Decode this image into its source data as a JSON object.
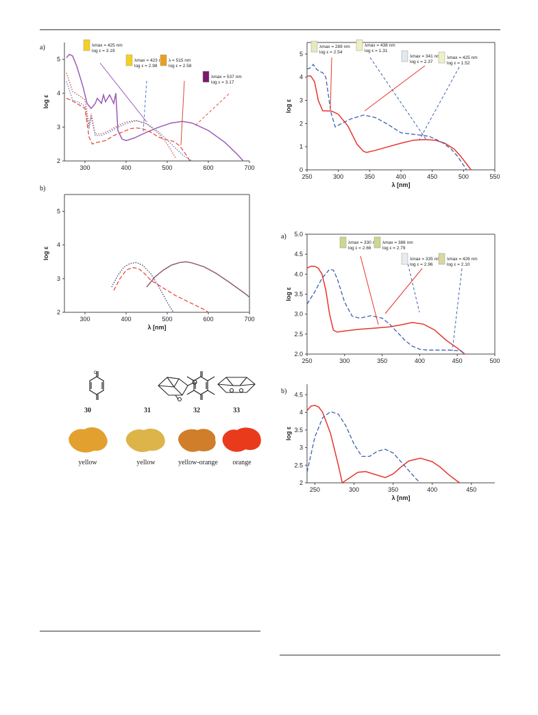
{
  "panel_labels": {
    "left_a": "a)",
    "left_b": "b)",
    "right_a": "a)",
    "right_b": "b)"
  },
  "compounds": [
    {
      "number": "30",
      "color_name": "yellow",
      "powder_color": "#e2a02e"
    },
    {
      "number": "31",
      "color_name": "yellow",
      "powder_color": "#ddb44a"
    },
    {
      "number": "32",
      "color_name": "yellow-orange",
      "powder_color": "#d07e2a"
    },
    {
      "number": "33",
      "color_name": "orange",
      "powder_color": "#ea3a1c"
    }
  ],
  "chart_data": [
    {
      "id": "left-a",
      "type": "line",
      "xlabel": "",
      "ylabel": "log ε",
      "xlim": [
        250,
        700
      ],
      "ylim": [
        2,
        5.5
      ],
      "xticks": [
        300,
        400,
        500,
        600,
        700
      ],
      "yticks": [
        2,
        3,
        4,
        5
      ],
      "grid": false,
      "series": [
        {
          "style": "solid",
          "color": "#9b59b6",
          "x": [
            255,
            262,
            270,
            280,
            295,
            305,
            315,
            325,
            330,
            340,
            345,
            350,
            360,
            370,
            375,
            380,
            390,
            400,
            420,
            450,
            480,
            510,
            537,
            560,
            600,
            640,
            670,
            685
          ],
          "y": [
            5.05,
            5.15,
            5.1,
            4.8,
            4.2,
            3.7,
            3.55,
            3.7,
            3.85,
            3.7,
            3.95,
            3.75,
            3.95,
            3.7,
            4.0,
            2.9,
            2.65,
            2.6,
            2.68,
            2.85,
            3.0,
            3.12,
            3.17,
            3.12,
            2.9,
            2.55,
            2.2,
            2.0
          ]
        },
        {
          "style": "dotted",
          "color": "#4a7bd0",
          "x": [
            255,
            270,
            290,
            300,
            310,
            315,
            325,
            340,
            360,
            380,
            400,
            425,
            450,
            480,
            510,
            540,
            560
          ],
          "y": [
            4.35,
            3.8,
            3.7,
            3.6,
            2.95,
            3.3,
            2.75,
            2.75,
            2.85,
            3.0,
            3.1,
            3.19,
            3.1,
            2.85,
            2.5,
            2.15,
            2.0
          ]
        },
        {
          "style": "dotted",
          "color": "#d44a3a",
          "x": [
            255,
            270,
            290,
            300,
            310,
            315,
            325,
            340,
            360,
            380,
            400,
            423,
            450,
            480,
            500,
            510,
            520
          ],
          "y": [
            4.6,
            4.05,
            3.9,
            3.8,
            3.05,
            3.4,
            2.8,
            2.8,
            2.9,
            3.05,
            3.15,
            3.2,
            3.1,
            2.8,
            2.5,
            2.3,
            2.1
          ]
        },
        {
          "style": "dashed",
          "color": "#e84b3a",
          "x": [
            255,
            265,
            280,
            300,
            310,
            318,
            330,
            350,
            370,
            390,
            410,
            423,
            440,
            460,
            480,
            500,
            515,
            530,
            545,
            555
          ],
          "y": [
            3.85,
            3.8,
            3.7,
            3.55,
            2.7,
            2.5,
            2.55,
            2.6,
            2.75,
            2.85,
            2.95,
            2.98,
            2.95,
            2.85,
            2.7,
            2.62,
            2.58,
            2.45,
            2.2,
            2.0
          ]
        }
      ],
      "annotations": [
        {
          "lines": [
            "λmax = 425 nm",
            "log ε = 3.19"
          ],
          "vial_color": "#f4d020"
        },
        {
          "lines": [
            "λmax = 423 nm",
            "log ε = 2.98"
          ],
          "vial_color": "#f4d020"
        },
        {
          "lines": [
            "λ = 515 nm",
            "log ε = 2.58"
          ],
          "vial_color": "#e8a020"
        },
        {
          "lines": [
            "λmax = 537 nm",
            "log ε = 3.17"
          ],
          "vial_color": "#7a1a6a"
        }
      ]
    },
    {
      "id": "left-b",
      "type": "line",
      "xlabel": "λ [nm]",
      "ylabel": "log ε",
      "xlim": [
        250,
        700
      ],
      "ylim": [
        2,
        5.5
      ],
      "xticks": [
        300,
        400,
        500,
        600,
        700
      ],
      "yticks": [
        2,
        3,
        4,
        5
      ],
      "grid": false,
      "series": [
        {
          "style": "solid",
          "color": "#8e5a6a",
          "x": [
            450,
            470,
            490,
            510,
            530,
            545,
            560,
            590,
            620,
            650,
            690,
            700
          ],
          "y": [
            2.75,
            3.05,
            3.25,
            3.4,
            3.48,
            3.5,
            3.47,
            3.35,
            3.15,
            2.9,
            2.55,
            2.45
          ]
        },
        {
          "style": "dotted",
          "color": "#2b3e7a",
          "x": [
            365,
            380,
            395,
            410,
            425,
            440,
            460,
            480,
            500,
            515
          ],
          "y": [
            2.75,
            3.1,
            3.35,
            3.45,
            3.48,
            3.4,
            3.15,
            2.75,
            2.3,
            2.0
          ]
        },
        {
          "style": "dashed",
          "color": "#e84b3a",
          "x": [
            370,
            385,
            400,
            415,
            430,
            445,
            460,
            480,
            500,
            520,
            545,
            570,
            590,
            600
          ],
          "y": [
            2.65,
            3.0,
            3.25,
            3.33,
            3.3,
            3.15,
            2.95,
            2.8,
            2.65,
            2.5,
            2.35,
            2.2,
            2.08,
            2.0
          ]
        }
      ],
      "annotations": []
    },
    {
      "id": "right-top",
      "type": "line",
      "xlabel": "λ [nm]",
      "ylabel": "log ε",
      "xlim": [
        250,
        550
      ],
      "ylim": [
        0,
        5.5
      ],
      "xticks": [
        250,
        300,
        350,
        400,
        450,
        500,
        550
      ],
      "yticks": [
        0,
        1,
        2,
        3,
        4,
        5
      ],
      "grid": false,
      "series": [
        {
          "style": "solid",
          "color": "#e8322a",
          "x": [
            250,
            256,
            262,
            268,
            275,
            289,
            300,
            315,
            330,
            340,
            345,
            360,
            380,
            400,
            420,
            438,
            455,
            470,
            485,
            495,
            505,
            512
          ],
          "y": [
            4.05,
            4.05,
            3.8,
            3.0,
            2.55,
            2.54,
            2.4,
            1.9,
            1.1,
            0.8,
            0.75,
            0.85,
            1.0,
            1.15,
            1.28,
            1.31,
            1.28,
            1.15,
            0.9,
            0.6,
            0.25,
            0.0
          ]
        },
        {
          "style": "dashed",
          "color": "#3a5fb0",
          "x": [
            250,
            255,
            260,
            265,
            270,
            275,
            280,
            288,
            295,
            305,
            320,
            341,
            360,
            380,
            400,
            425,
            445,
            465,
            480,
            490,
            500,
            505
          ],
          "y": [
            4.35,
            4.4,
            4.55,
            4.35,
            4.25,
            4.2,
            4.0,
            2.5,
            1.85,
            2.0,
            2.2,
            2.37,
            2.25,
            1.95,
            1.6,
            1.52,
            1.45,
            1.2,
            0.9,
            0.6,
            0.2,
            0.0
          ]
        }
      ],
      "annotations": [
        {
          "lines": [
            "λmax = 289 nm",
            "log ε = 2.54"
          ],
          "vial_color": "#e8e8c0"
        },
        {
          "lines": [
            "λmax = 438 nm",
            "log ε = 1.31"
          ],
          "vial_color": "#eef0c0"
        },
        {
          "lines": [
            "λmax = 341 nm",
            "log ε = 2.37"
          ],
          "vial_color": "#e0e8f0"
        },
        {
          "lines": [
            "λmax = 425 nm",
            "log ε = 1.52"
          ],
          "vial_color": "#f0f0c8"
        }
      ]
    },
    {
      "id": "right-a",
      "type": "line",
      "xlabel": "",
      "ylabel": "log ε",
      "xlim": [
        250,
        500
      ],
      "ylim": [
        2.0,
        5.0
      ],
      "xticks": [
        250,
        300,
        350,
        400,
        450,
        500
      ],
      "yticks": [
        2.0,
        2.5,
        3.0,
        3.5,
        4.0,
        4.5,
        5.0
      ],
      "grid": false,
      "series": [
        {
          "style": "solid",
          "color": "#e8322a",
          "x": [
            250,
            255,
            260,
            265,
            270,
            275,
            280,
            285,
            290,
            300,
            320,
            340,
            360,
            375,
            390,
            405,
            420,
            435,
            450,
            460
          ],
          "y": [
            4.15,
            4.2,
            4.2,
            4.15,
            4.0,
            3.6,
            3.0,
            2.6,
            2.55,
            2.58,
            2.62,
            2.65,
            2.68,
            2.73,
            2.79,
            2.75,
            2.6,
            2.35,
            2.15,
            2.0
          ]
        },
        {
          "style": "dashed",
          "color": "#3a5fb0",
          "x": [
            250,
            260,
            270,
            280,
            285,
            290,
            300,
            310,
            320,
            335,
            350,
            360,
            370,
            380,
            390,
            400,
            410,
            425,
            440,
            455,
            460
          ],
          "y": [
            3.25,
            3.55,
            3.9,
            4.12,
            4.1,
            3.9,
            3.3,
            2.95,
            2.9,
            2.96,
            2.9,
            2.75,
            2.55,
            2.35,
            2.2,
            2.12,
            2.1,
            2.1,
            2.1,
            2.08,
            2.0
          ]
        }
      ],
      "annotations": [
        {
          "lines": [
            "λmax = 330 nm",
            "log ε = 2.66"
          ],
          "vial_color": "#c8d890"
        },
        {
          "lines": [
            "λmax = 386 nm",
            "log ε = 2.79"
          ],
          "vial_color": "#c8d890"
        },
        {
          "lines": [
            "λmax = 335 nm",
            "log ε = 2.96"
          ],
          "vial_color": "#e8ecf0"
        },
        {
          "lines": [
            "λmax = 426 nm",
            "log ε = 2.10"
          ],
          "vial_color": "#d8d8a0"
        }
      ]
    },
    {
      "id": "right-b",
      "type": "line",
      "xlabel": "λ [nm]",
      "ylabel": "log ε",
      "xlim": [
        240,
        480
      ],
      "ylim": [
        2,
        4.8
      ],
      "xticks": [
        250,
        300,
        350,
        400,
        450
      ],
      "yticks": [
        2,
        2.5,
        3,
        3.5,
        4,
        4.5
      ],
      "grid": false,
      "series": [
        {
          "style": "solid",
          "color": "#e8322a",
          "x": [
            240,
            245,
            250,
            255,
            260,
            270,
            280,
            285,
            295,
            305,
            315,
            325,
            340,
            350,
            360,
            370,
            385,
            400,
            410,
            420,
            430,
            435
          ],
          "y": [
            4.05,
            4.18,
            4.2,
            4.15,
            4.0,
            3.4,
            2.5,
            2.0,
            2.15,
            2.3,
            2.32,
            2.25,
            2.15,
            2.25,
            2.45,
            2.62,
            2.7,
            2.6,
            2.45,
            2.25,
            2.08,
            2.0
          ]
        },
        {
          "style": "dashed",
          "color": "#3a5fb0",
          "x": [
            240,
            250,
            260,
            270,
            280,
            290,
            300,
            310,
            320,
            330,
            340,
            350,
            360,
            370,
            380,
            385
          ],
          "y": [
            2.3,
            3.3,
            3.85,
            4.02,
            3.95,
            3.6,
            3.1,
            2.75,
            2.75,
            2.9,
            2.95,
            2.85,
            2.6,
            2.35,
            2.1,
            2.0
          ]
        }
      ],
      "annotations": []
    }
  ]
}
